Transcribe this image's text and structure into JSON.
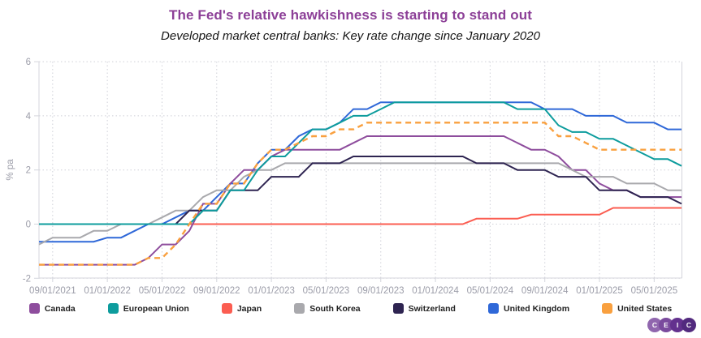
{
  "header": {
    "title": "The Fed's relative hawkishness is starting to stand out",
    "subtitle": "Developed market central banks: Key rate change since January 2020"
  },
  "chart_data": {
    "type": "line",
    "title": "The Fed's relative hawkishness is starting to stand out",
    "subtitle": "Developed market central banks: Key rate change since January 2020",
    "ylabel": "% pa",
    "ylim": [
      -2,
      6
    ],
    "yticks": [
      6,
      4,
      2,
      0,
      -2
    ],
    "grid": "dotted",
    "legend_position": "bottom",
    "x_frequency": "monthly",
    "x_start": "07/2021",
    "x_end": "06/2025",
    "x_tick_labels": [
      "09/01/2021",
      "01/01/2022",
      "05/01/2022",
      "09/01/2022",
      "01/01/2023",
      "05/01/2023",
      "09/01/2023",
      "01/01/2024",
      "05/01/2024",
      "09/01/2024",
      "01/01/2025",
      "05/01/2025"
    ],
    "series": [
      {
        "name": "Canada",
        "color": "#8e4d9d",
        "dash": false,
        "values": [
          -1.5,
          -1.5,
          -1.5,
          -1.5,
          -1.5,
          -1.5,
          -1.5,
          -1.5,
          -1.25,
          -0.75,
          -0.75,
          -0.25,
          0.75,
          0.75,
          1.5,
          2.0,
          2.0,
          2.5,
          2.75,
          2.75,
          2.75,
          2.75,
          2.75,
          3.0,
          3.25,
          3.25,
          3.25,
          3.25,
          3.25,
          3.25,
          3.25,
          3.25,
          3.25,
          3.25,
          3.25,
          3.0,
          2.75,
          2.75,
          2.5,
          2.0,
          2.0,
          1.5,
          1.25,
          1.25,
          1.0,
          1.0,
          1.0,
          1.0
        ]
      },
      {
        "name": "European Union",
        "color": "#0d9c9d",
        "dash": false,
        "values": [
          0,
          0,
          0,
          0,
          0,
          0,
          0,
          0,
          0,
          0,
          0,
          0,
          0.5,
          0.5,
          1.25,
          1.25,
          2.0,
          2.5,
          2.5,
          3.0,
          3.5,
          3.5,
          3.75,
          4.0,
          4.0,
          4.25,
          4.5,
          4.5,
          4.5,
          4.5,
          4.5,
          4.5,
          4.5,
          4.5,
          4.5,
          4.25,
          4.25,
          4.25,
          3.65,
          3.4,
          3.4,
          3.15,
          3.15,
          2.9,
          2.65,
          2.4,
          2.4,
          2.15
        ]
      },
      {
        "name": "Japan",
        "color": "#fb5d51",
        "dash": false,
        "values": [
          0,
          0,
          0,
          0,
          0,
          0,
          0,
          0,
          0,
          0,
          0,
          0,
          0,
          0,
          0,
          0,
          0,
          0,
          0,
          0,
          0,
          0,
          0,
          0,
          0,
          0,
          0,
          0,
          0,
          0,
          0,
          0,
          0.2,
          0.2,
          0.2,
          0.2,
          0.35,
          0.35,
          0.35,
          0.35,
          0.35,
          0.35,
          0.6,
          0.6,
          0.6,
          0.6,
          0.6,
          0.6
        ]
      },
      {
        "name": "South Korea",
        "color": "#a9a9ad",
        "dash": false,
        "values": [
          -0.75,
          -0.5,
          -0.5,
          -0.5,
          -0.25,
          -0.25,
          0,
          0,
          0,
          0.25,
          0.5,
          0.5,
          1.0,
          1.25,
          1.25,
          1.75,
          2.0,
          2.0,
          2.25,
          2.25,
          2.25,
          2.25,
          2.25,
          2.25,
          2.25,
          2.25,
          2.25,
          2.25,
          2.25,
          2.25,
          2.25,
          2.25,
          2.25,
          2.25,
          2.25,
          2.25,
          2.25,
          2.25,
          2.25,
          2.0,
          1.75,
          1.75,
          1.75,
          1.5,
          1.5,
          1.5,
          1.25,
          1.25
        ]
      },
      {
        "name": "Switzerland",
        "color": "#2e2451",
        "dash": false,
        "values": [
          0,
          0,
          0,
          0,
          0,
          0,
          0,
          0,
          0,
          0,
          0,
          0.5,
          0.5,
          0.5,
          1.25,
          1.25,
          1.25,
          1.75,
          1.75,
          1.75,
          2.25,
          2.25,
          2.25,
          2.5,
          2.5,
          2.5,
          2.5,
          2.5,
          2.5,
          2.5,
          2.5,
          2.5,
          2.25,
          2.25,
          2.25,
          2.0,
          2.0,
          2.0,
          1.75,
          1.75,
          1.75,
          1.25,
          1.25,
          1.25,
          1.0,
          1.0,
          1.0,
          0.75
        ]
      },
      {
        "name": "United Kingdom",
        "color": "#2f68d8",
        "dash": false,
        "values": [
          -0.65,
          -0.65,
          -0.65,
          -0.65,
          -0.65,
          -0.5,
          -0.5,
          -0.25,
          0,
          0,
          0.25,
          0.5,
          0.5,
          1.0,
          1.5,
          1.5,
          2.25,
          2.75,
          2.75,
          3.25,
          3.5,
          3.5,
          3.75,
          4.25,
          4.25,
          4.5,
          4.5,
          4.5,
          4.5,
          4.5,
          4.5,
          4.5,
          4.5,
          4.5,
          4.5,
          4.5,
          4.5,
          4.25,
          4.25,
          4.25,
          4.0,
          4.0,
          4.0,
          3.75,
          3.75,
          3.75,
          3.5,
          3.5
        ]
      },
      {
        "name": "United States",
        "color": "#f9a03f",
        "dash": true,
        "values": [
          -1.5,
          -1.5,
          -1.5,
          -1.5,
          -1.5,
          -1.5,
          -1.5,
          -1.5,
          -1.25,
          -1.25,
          -0.75,
          0,
          0.75,
          0.75,
          1.5,
          1.5,
          2.25,
          2.75,
          2.75,
          3.0,
          3.25,
          3.25,
          3.5,
          3.5,
          3.75,
          3.75,
          3.75,
          3.75,
          3.75,
          3.75,
          3.75,
          3.75,
          3.75,
          3.75,
          3.75,
          3.75,
          3.75,
          3.75,
          3.25,
          3.25,
          3.0,
          2.75,
          2.75,
          2.75,
          2.75,
          2.75,
          2.75,
          2.75
        ]
      }
    ],
    "draw_order": [
      2,
      5,
      0,
      3,
      4,
      1,
      6
    ],
    "axis_color": "#d4d5dc",
    "grid_color": "#cfd0d8",
    "tick_label_color": "#9b9ca8"
  },
  "legend": {
    "items": [
      {
        "label": "Canada",
        "color": "#8e4d9d"
      },
      {
        "label": "European Union",
        "color": "#0d9c9d"
      },
      {
        "label": "Japan",
        "color": "#fb5d51"
      },
      {
        "label": "South Korea",
        "color": "#a9a9ad"
      },
      {
        "label": "Switzerland",
        "color": "#2e2451"
      },
      {
        "label": "United Kingdom",
        "color": "#2f68d8"
      },
      {
        "label": "United States",
        "color": "#f9a03f"
      }
    ]
  },
  "logo": {
    "letters": [
      "C",
      "E",
      "I",
      "C"
    ],
    "colors": [
      "#9066ae",
      "#7a4a9d",
      "#63318e",
      "#522a7e"
    ]
  }
}
